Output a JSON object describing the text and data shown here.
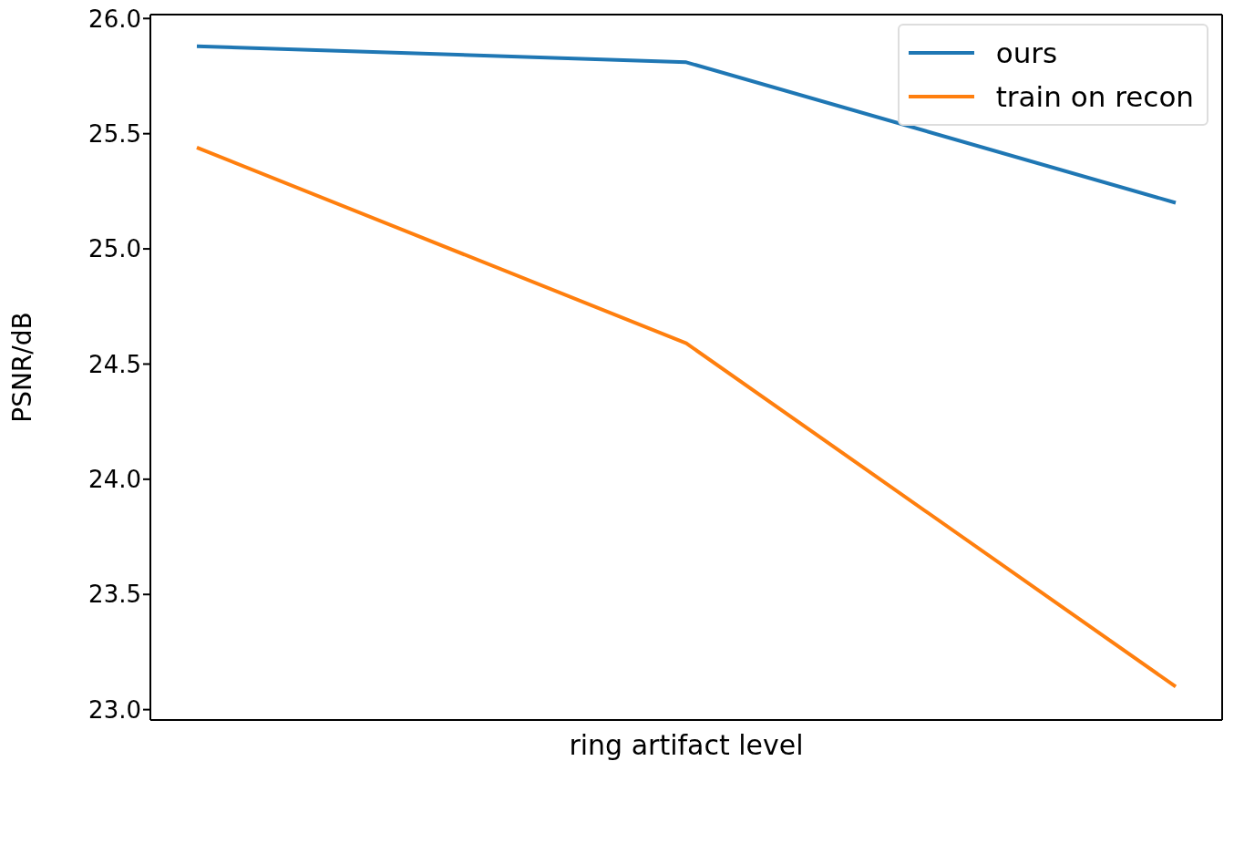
{
  "chart_data": {
    "type": "line",
    "xlabel": "ring artifact level",
    "ylabel": "PSNR/dB",
    "categories": [
      null,
      null,
      null
    ],
    "series": [
      {
        "name": "ours",
        "color": "#1f77b4",
        "values": [
          25.88,
          25.81,
          25.2
        ]
      },
      {
        "name": "train on recon",
        "color": "#ff7f0e",
        "values": [
          25.44,
          24.59,
          23.1
        ]
      }
    ],
    "ylim": [
      22.955,
      26.017
    ],
    "yticks": [
      {
        "value": 23,
        "label": "23.0"
      },
      {
        "value": 23.5,
        "label": "23.5"
      },
      {
        "value": 24,
        "label": "24.0"
      },
      {
        "value": 24.5,
        "label": "24.5"
      },
      {
        "value": 25,
        "label": "25.0"
      },
      {
        "value": 25.5,
        "label": "25.5"
      },
      {
        "value": 26,
        "label": "26.0"
      }
    ],
    "legend": "top right",
    "grid": false,
    "marker": "none",
    "line_style": "solid"
  }
}
